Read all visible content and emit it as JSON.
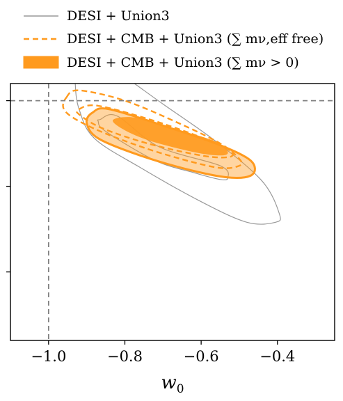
{
  "chart_data": {
    "type": "contour",
    "xlabel": "w0",
    "xlabel_main": "w",
    "xlabel_sub": "0",
    "xlim": [
      -1.1,
      -0.25
    ],
    "ylim": [
      -1.9,
      -0.4
    ],
    "x_ticks": [
      -1.0,
      -0.8,
      -0.6,
      -0.4
    ],
    "x_tick_labels": [
      "−1.0",
      "−0.8",
      "−0.6",
      "−0.4"
    ],
    "y_ticks": [
      -1.5,
      -1.0,
      -0.5
    ],
    "y_tick_labels": [
      "",
      "",
      ""
    ],
    "reference_lines": {
      "x": -1.0,
      "y": -0.5,
      "style": "dashed",
      "color": "#808080"
    },
    "legend": {
      "placement": "top-left",
      "entries": [
        {
          "label": "DESI + Union3",
          "style": "solid-line",
          "color": "#999999"
        },
        {
          "label": "DESI + CMB + Union3 (∑ mν,eff free)",
          "style": "dashed-line",
          "color": "#ff9a1e"
        },
        {
          "label": "DESI + CMB + Union3 (∑ mν > 0)",
          "style": "filled",
          "color": "#ff9a1e"
        }
      ]
    },
    "series": [
      {
        "name": "DESI + Union3",
        "style": "solid",
        "color": "#999999",
        "contours": [
          {
            "level": "95%",
            "points": [
              [
                -0.925,
                -0.3
              ],
              [
                -0.86,
                -0.29
              ],
              [
                -0.82,
                -0.33
              ],
              [
                -0.7,
                -0.52
              ],
              [
                -0.56,
                -0.74
              ],
              [
                -0.44,
                -0.97
              ],
              [
                -0.395,
                -1.16
              ],
              [
                -0.405,
                -1.21
              ],
              [
                -0.48,
                -1.21
              ],
              [
                -0.6,
                -1.09
              ],
              [
                -0.76,
                -0.89
              ],
              [
                -0.88,
                -0.72
              ],
              [
                -0.92,
                -0.55
              ],
              [
                -0.93,
                -0.4
              ],
              [
                -0.925,
                -0.3
              ]
            ]
          },
          {
            "level": "68%",
            "points": [
              [
                -0.865,
                -0.61
              ],
              [
                -0.82,
                -0.59
              ],
              [
                -0.71,
                -0.77
              ],
              [
                -0.55,
                -0.88
              ],
              [
                -0.53,
                -0.95
              ],
              [
                -0.55,
                -0.96
              ],
              [
                -0.62,
                -0.92
              ],
              [
                -0.72,
                -0.85
              ],
              [
                -0.85,
                -0.68
              ],
              [
                -0.87,
                -0.62
              ],
              [
                -0.865,
                -0.61
              ]
            ]
          }
        ]
      },
      {
        "name": "DESI + CMB + Union3 (∑ mν,eff free)",
        "style": "dashed",
        "color": "#ff9a1e",
        "contours": [
          {
            "level": "95%",
            "points": [
              [
                -0.953,
                -0.48
              ],
              [
                -0.92,
                -0.44
              ],
              [
                -0.8,
                -0.5
              ],
              [
                -0.66,
                -0.63
              ],
              [
                -0.55,
                -0.75
              ],
              [
                -0.5,
                -0.84
              ],
              [
                -0.5,
                -0.88
              ],
              [
                -0.56,
                -0.89
              ],
              [
                -0.7,
                -0.81
              ],
              [
                -0.83,
                -0.71
              ],
              [
                -0.92,
                -0.62
              ],
              [
                -0.96,
                -0.55
              ],
              [
                -0.953,
                -0.48
              ]
            ]
          },
          {
            "level": "68%",
            "points": [
              [
                -0.92,
                -0.55
              ],
              [
                -0.87,
                -0.53
              ],
              [
                -0.72,
                -0.62
              ],
              [
                -0.57,
                -0.74
              ],
              [
                -0.52,
                -0.8
              ],
              [
                -0.53,
                -0.83
              ],
              [
                -0.6,
                -0.82
              ],
              [
                -0.74,
                -0.75
              ],
              [
                -0.86,
                -0.66
              ],
              [
                -0.92,
                -0.58
              ],
              [
                -0.92,
                -0.55
              ]
            ]
          }
        ]
      },
      {
        "name": "DESI + CMB + Union3 (∑ mν > 0)",
        "style": "filled",
        "color": "#ff9a1e",
        "contours": [
          {
            "level": "95%",
            "points": [
              [
                -0.885,
                -0.57
              ],
              [
                -0.84,
                -0.55
              ],
              [
                -0.68,
                -0.66
              ],
              [
                -0.55,
                -0.76
              ],
              [
                -0.47,
                -0.85
              ],
              [
                -0.465,
                -0.93
              ],
              [
                -0.52,
                -0.95
              ],
              [
                -0.62,
                -0.91
              ],
              [
                -0.76,
                -0.82
              ],
              [
                -0.87,
                -0.72
              ],
              [
                -0.9,
                -0.63
              ],
              [
                -0.885,
                -0.57
              ]
            ]
          },
          {
            "level": "68%",
            "points": [
              [
                -0.83,
                -0.61
              ],
              [
                -0.77,
                -0.6
              ],
              [
                -0.66,
                -0.67
              ],
              [
                -0.56,
                -0.74
              ],
              [
                -0.53,
                -0.8
              ],
              [
                -0.55,
                -0.82
              ],
              [
                -0.62,
                -0.8
              ],
              [
                -0.74,
                -0.73
              ],
              [
                -0.81,
                -0.66
              ],
              [
                -0.83,
                -0.61
              ]
            ]
          }
        ]
      }
    ]
  }
}
